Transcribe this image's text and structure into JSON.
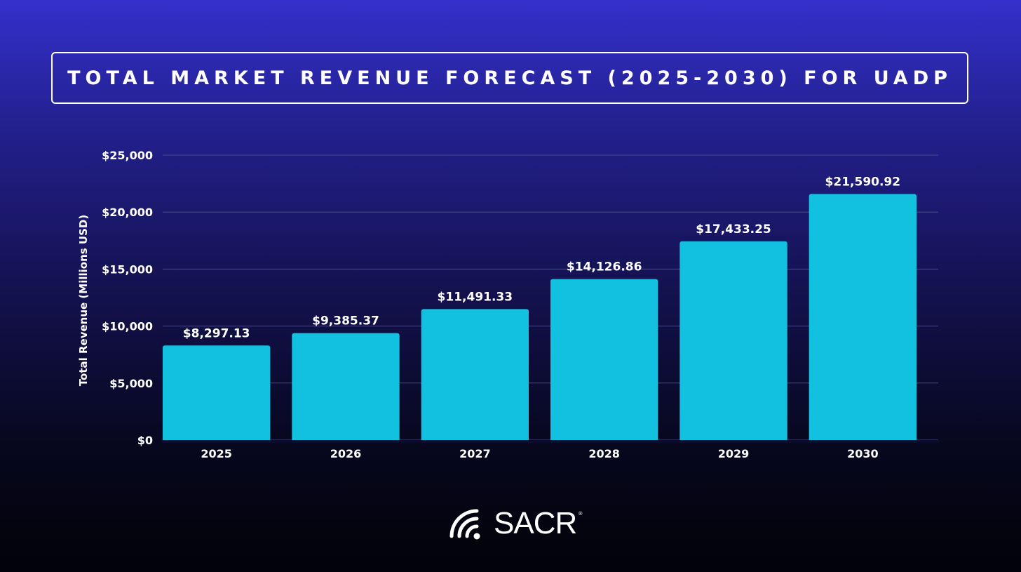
{
  "title": "TOTAL MARKET REVENUE FORECAST (2025-2030) FOR UADP",
  "logo": {
    "text": "SACR",
    "mark": "®",
    "icon": "wifi-signal-icon"
  },
  "colors": {
    "bar": "#12c1e0",
    "grid": "#4a4a8a",
    "text": "#ffffff"
  },
  "chart_data": {
    "type": "bar",
    "title": "TOTAL MARKET REVENUE FORECAST (2025-2030) FOR UADP",
    "xlabel": "",
    "ylabel": "Total Revenue (Millions USD)",
    "categories": [
      "2025",
      "2026",
      "2027",
      "2028",
      "2029",
      "2030"
    ],
    "values": [
      8297.13,
      9385.37,
      11491.33,
      14126.86,
      17433.25,
      21590.92
    ],
    "value_labels": [
      "$8,297.13",
      "$9,385.37",
      "$11,491.33",
      "$14,126.86",
      "$17,433.25",
      "$21,590.92"
    ],
    "ylim": [
      0,
      25000
    ],
    "yticks": [
      0,
      5000,
      10000,
      15000,
      20000,
      25000
    ],
    "ytick_labels": [
      "$0",
      "$5,000",
      "$10,000",
      "$15,000",
      "$20,000",
      "$25,000"
    ],
    "grid": true,
    "legend": false
  }
}
